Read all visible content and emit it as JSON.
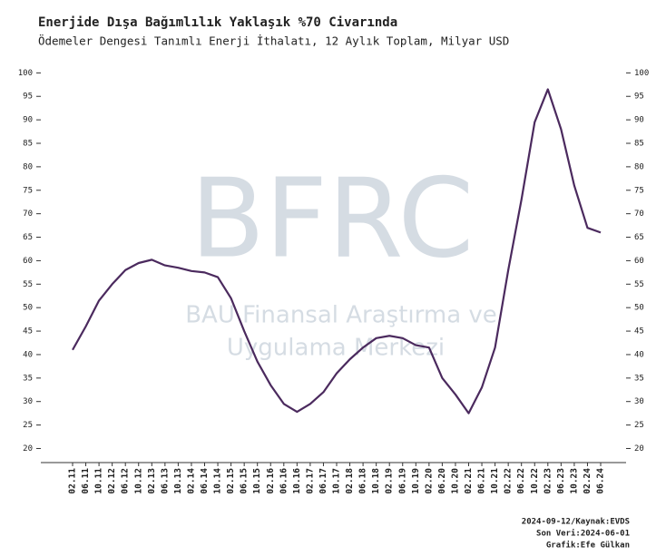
{
  "chart_data": {
    "type": "line",
    "title": "Enerjide Dışa Bağımlılık Yaklaşık %70 Civarında",
    "subtitle": "Ödemeler Dengesi Tanımlı Enerji İthalatı, 12 Aylık Toplam, Milyar USD",
    "watermark": [
      "BFRC",
      "BAU Finansal Araştırma ve",
      "Uygulama Merkezi"
    ],
    "footer": [
      "2024-09-12/Kaynak:EVDS",
      "Son Veri:2024-06-01",
      "Grafik:Efe Gülkan"
    ],
    "categories": [
      "02.11",
      "06.11",
      "10.11",
      "02.12",
      "06.12",
      "10.12",
      "02.13",
      "06.13",
      "10.13",
      "02.14",
      "06.14",
      "10.14",
      "02.15",
      "06.15",
      "10.15",
      "02.16",
      "06.16",
      "10.16",
      "02.17",
      "06.17",
      "10.17",
      "02.18",
      "06.18",
      "10.18",
      "02.19",
      "06.19",
      "10.19",
      "02.20",
      "06.20",
      "10.20",
      "02.21",
      "06.21",
      "10.21",
      "02.22",
      "06.22",
      "10.22",
      "02.23",
      "06.23",
      "10.23",
      "02.24",
      "06.24"
    ],
    "series": [
      {
        "name": "Enerji İthalatı",
        "color": "#4b2a5e",
        "values": [
          41,
          46,
          51.5,
          55,
          58,
          59.5,
          60.2,
          59,
          58.5,
          57.8,
          57.5,
          56.5,
          52,
          45,
          38.5,
          33.5,
          29.5,
          27.8,
          29.5,
          32,
          36,
          39,
          41.5,
          43.5,
          44,
          43.5,
          42,
          41.5,
          35,
          31.5,
          27.5,
          33,
          41.5,
          58,
          73,
          89.5,
          96.5,
          88,
          76,
          67,
          66
        ]
      }
    ],
    "ylim": [
      17,
      102
    ],
    "yticks": [
      20,
      25,
      30,
      35,
      40,
      45,
      50,
      55,
      60,
      65,
      70,
      75,
      80,
      85,
      90,
      95,
      100
    ],
    "y2lim": [
      17,
      102
    ],
    "y2ticks": [
      20,
      25,
      30,
      35,
      40,
      45,
      50,
      55,
      60,
      65,
      70,
      75,
      80,
      85,
      90,
      95,
      100
    ]
  }
}
